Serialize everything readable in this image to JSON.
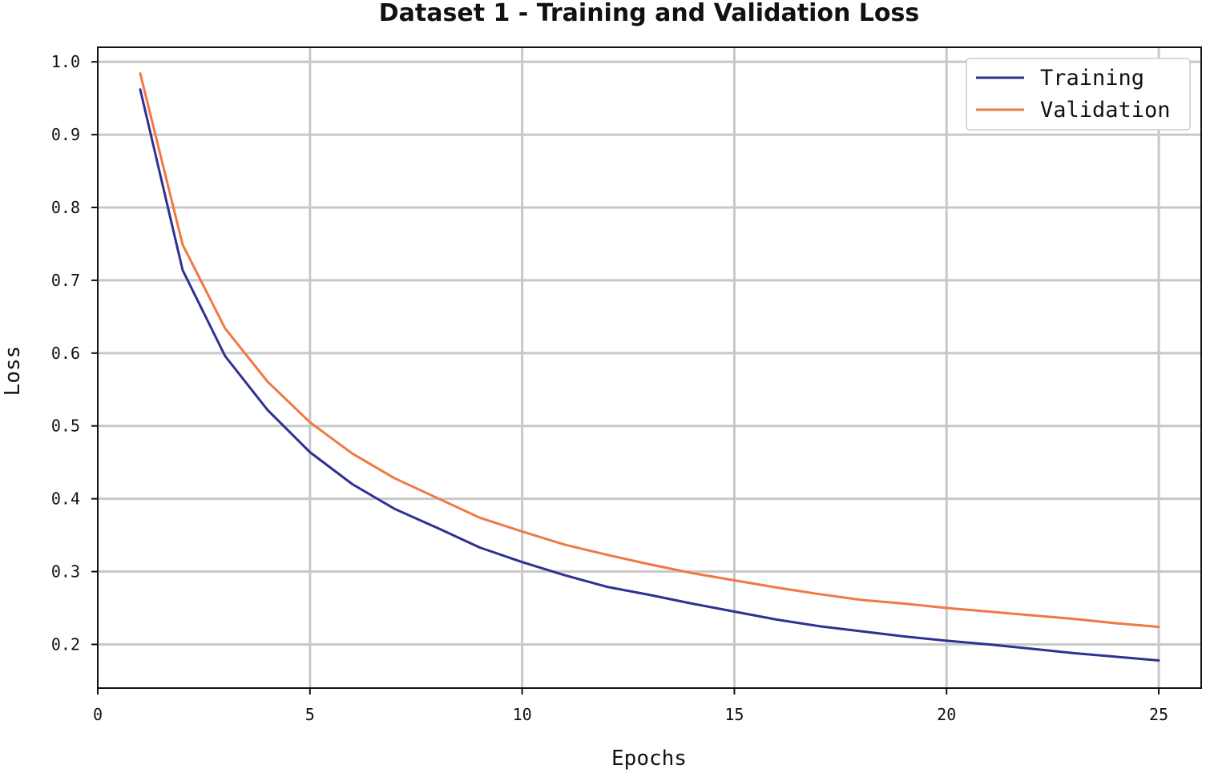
{
  "chart_data": {
    "type": "line",
    "title": "Dataset 1 - Training and Validation Loss",
    "xlabel": "Epochs",
    "ylabel": "Loss",
    "xlim": [
      0,
      26
    ],
    "ylim": [
      0.14,
      1.02
    ],
    "xticks": [
      0,
      5,
      10,
      15,
      20,
      25
    ],
    "yticks": [
      0.2,
      0.3,
      0.4,
      0.5,
      0.6,
      0.7,
      0.8,
      0.9,
      1.0
    ],
    "xtick_labels": [
      "0",
      "5",
      "10",
      "15",
      "20",
      "25"
    ],
    "ytick_labels": [
      "0.2",
      "0.3",
      "0.4",
      "0.5",
      "0.6",
      "0.7",
      "0.8",
      "0.9",
      "1.0"
    ],
    "grid": true,
    "legend_position": "top-right",
    "x": [
      1,
      2,
      3,
      4,
      5,
      6,
      7,
      8,
      9,
      10,
      11,
      12,
      13,
      14,
      15,
      16,
      17,
      18,
      19,
      20,
      21,
      22,
      23,
      24,
      25
    ],
    "series": [
      {
        "name": "Training",
        "color": "#2e3192",
        "values": [
          0.962,
          0.714,
          0.596,
          0.522,
          0.464,
          0.42,
          0.386,
          0.36,
          0.333,
          0.313,
          0.295,
          0.279,
          0.268,
          0.256,
          0.245,
          0.234,
          0.225,
          0.218,
          0.211,
          0.205,
          0.2,
          0.194,
          0.188,
          0.183,
          0.178
        ]
      },
      {
        "name": "Validation",
        "color": "#f07845",
        "values": [
          0.984,
          0.749,
          0.634,
          0.561,
          0.505,
          0.462,
          0.428,
          0.401,
          0.374,
          0.355,
          0.337,
          0.323,
          0.31,
          0.298,
          0.288,
          0.278,
          0.269,
          0.261,
          0.256,
          0.25,
          0.245,
          0.24,
          0.235,
          0.229,
          0.224
        ]
      }
    ]
  }
}
